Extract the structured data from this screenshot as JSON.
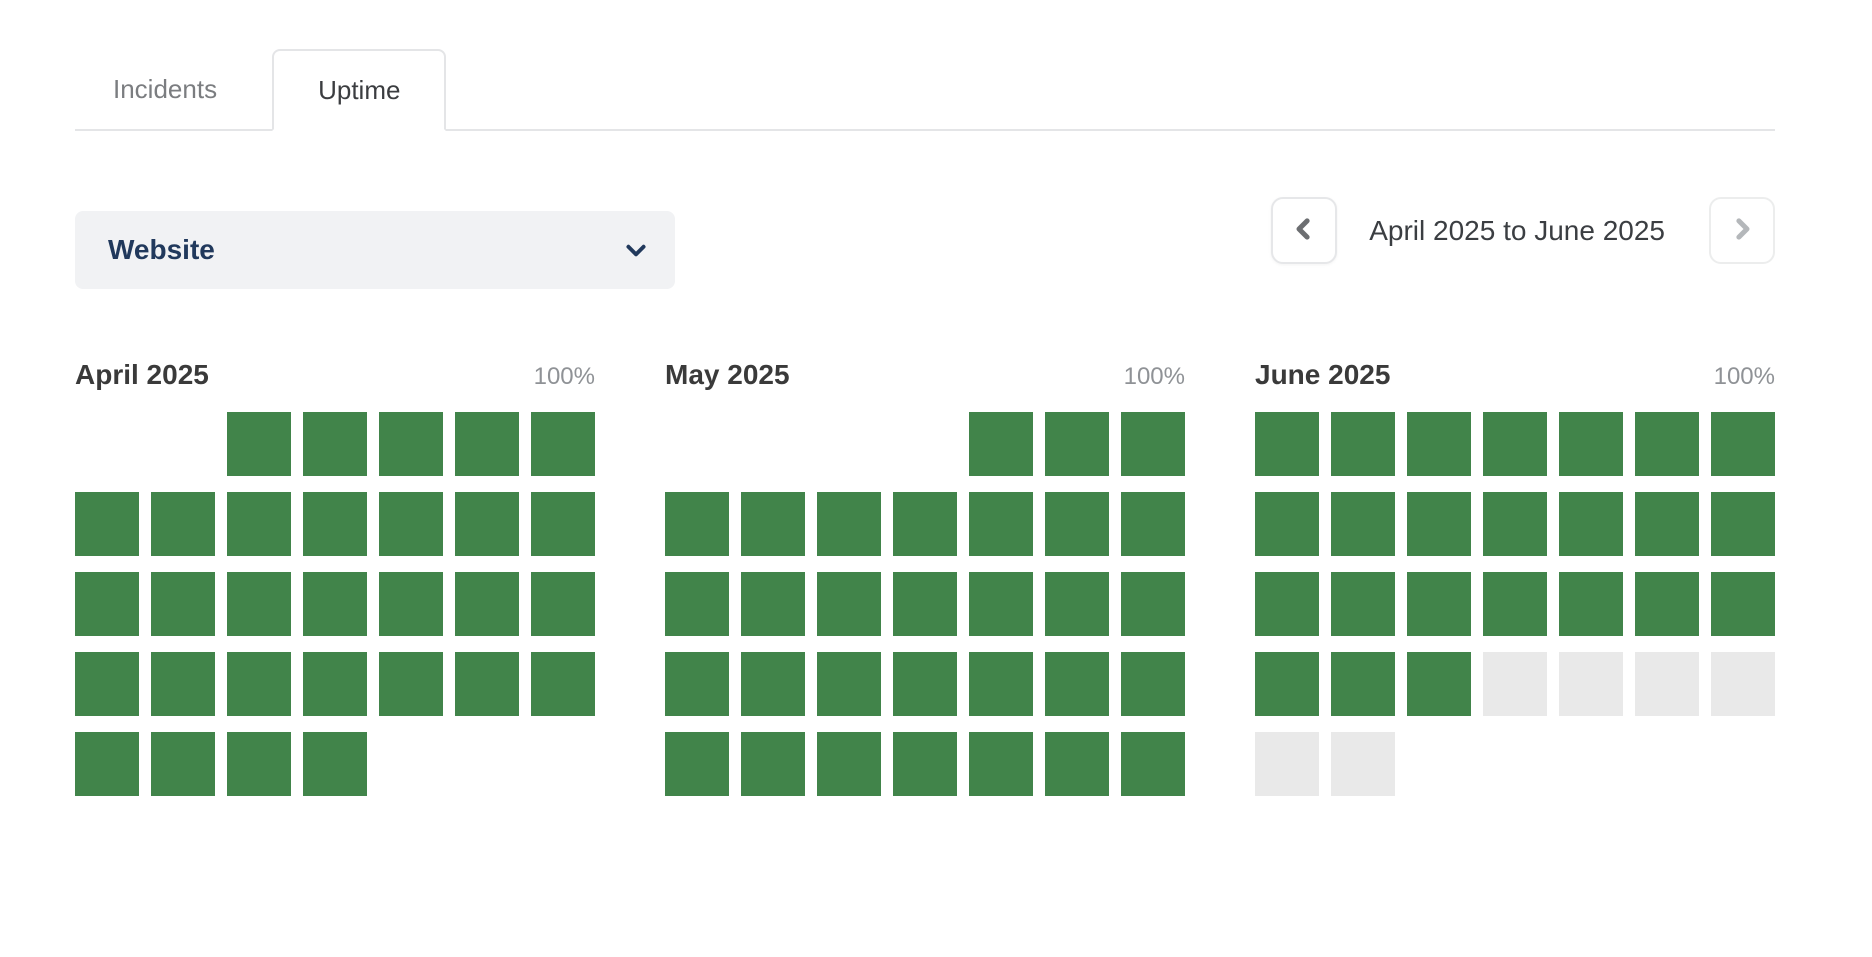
{
  "tabs": {
    "items": [
      {
        "label": "Incidents",
        "active": false
      },
      {
        "label": "Uptime",
        "active": true
      }
    ]
  },
  "monitor_dropdown": {
    "value": "Website",
    "icon": "chevron-down-icon"
  },
  "date_range_nav": {
    "label": "April 2025 to June 2025",
    "prev_icon": "chevron-left-icon",
    "next_icon": "chevron-right-icon"
  },
  "colors": {
    "up_green": "#41844a",
    "future_gray": "#e9e9e9",
    "dropdown_bg": "#f1f2f4",
    "dropdown_text": "#21395c",
    "prev_chevron": "#6c6e71",
    "next_chevron": "#b4b7ba"
  },
  "cell_states": {
    "u": "up",
    "f": "future",
    "e": "empty"
  },
  "months": [
    {
      "title": "April 2025",
      "uptime_label": "100%",
      "rows": [
        "eeuuuuu",
        "uuuuuuu",
        "uuuuuuu",
        "uuuuuuu",
        "uuuueee"
      ]
    },
    {
      "title": "May 2025",
      "uptime_label": "100%",
      "rows": [
        "eeeeuuu",
        "uuuuuuu",
        "uuuuuuu",
        "uuuuuuu",
        "uuuuuuu"
      ]
    },
    {
      "title": "June 2025",
      "uptime_label": "100%",
      "rows": [
        "uuuuuuu",
        "uuuuuuu",
        "uuuuuuu",
        "uuuffff",
        "ffeeeee"
      ]
    }
  ]
}
